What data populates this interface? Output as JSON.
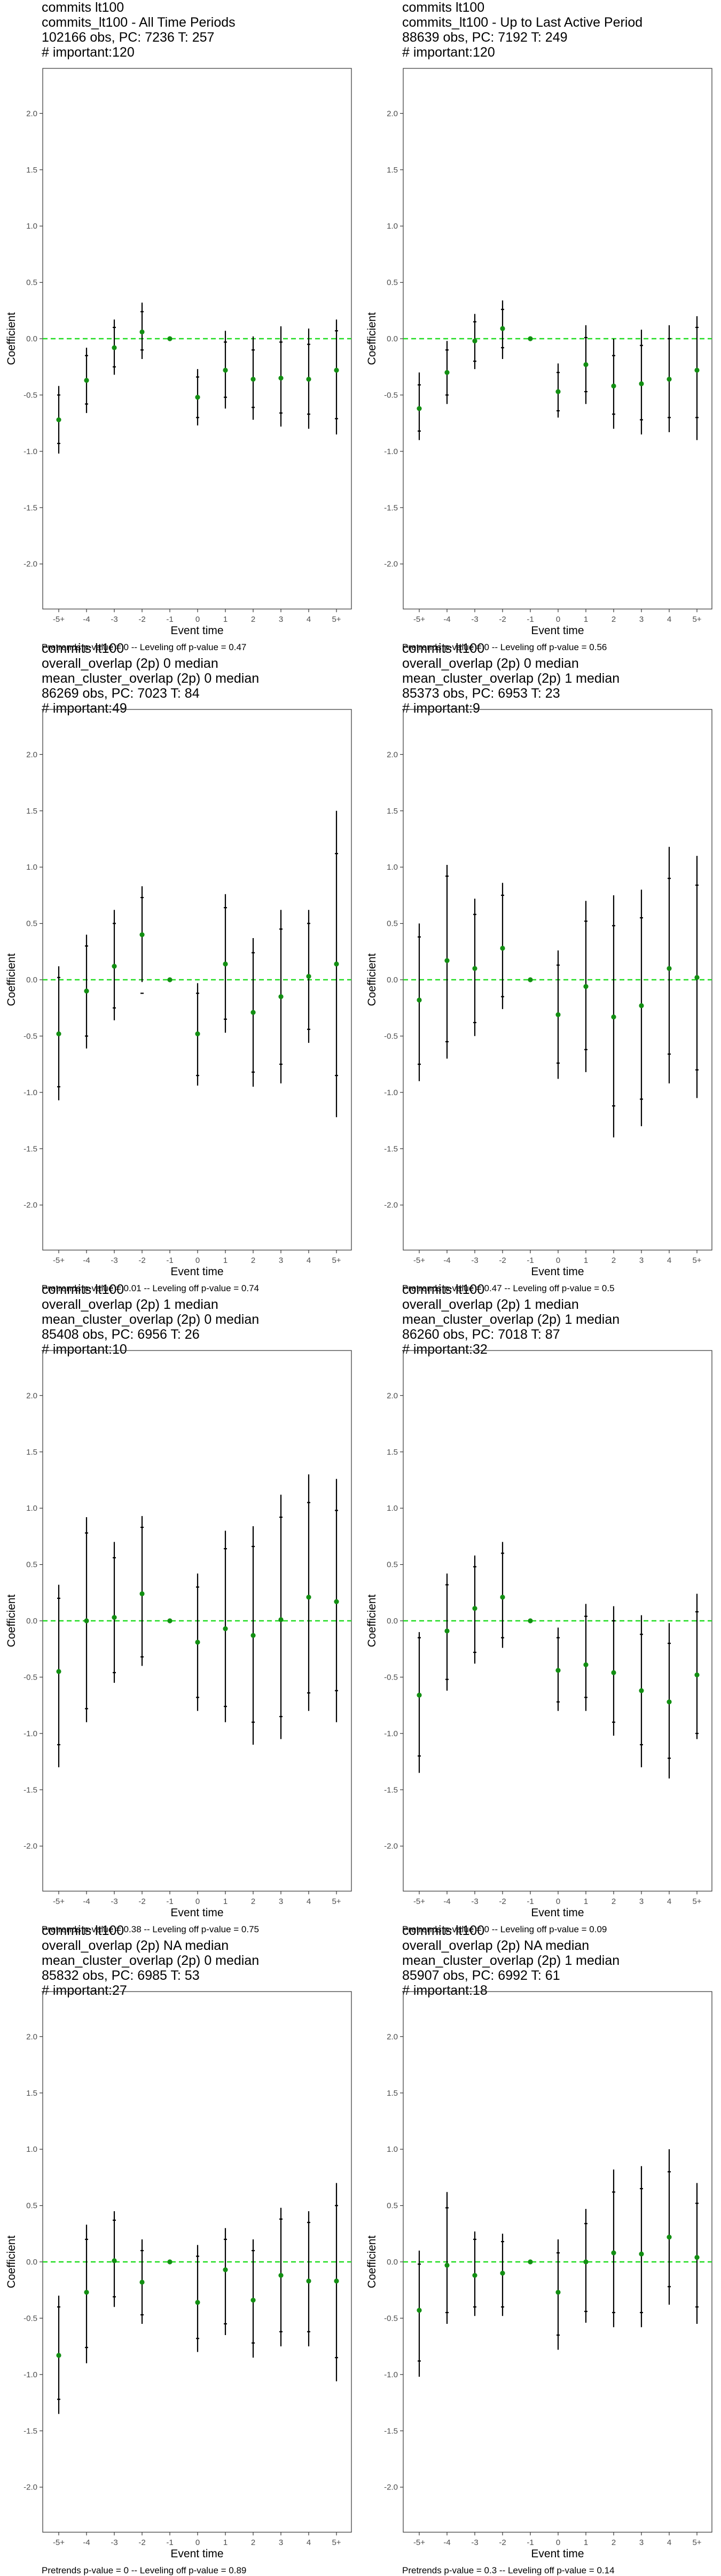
{
  "chart_data": [
    {
      "type": "scatter",
      "title": [
        "commits lt100",
        "commits_lt100 - All Time Periods",
        "102166 obs, PC: 7236 T: 257",
        "# important:120"
      ],
      "xlabel": "Event time",
      "ylabel": "Coefficient",
      "categories": [
        "-5+",
        "-4",
        "-3",
        "-2",
        "-1",
        "0",
        "1",
        "2",
        "3",
        "4",
        "5+"
      ],
      "ylim": [
        -2.4,
        2.4
      ],
      "yticks": [
        -2.0,
        -1.5,
        -1.0,
        -0.5,
        0.0,
        0.5,
        1.0,
        1.5,
        2.0
      ],
      "reference_line": 0,
      "footer": "Pretrends p-value = 0 -- Leveling off p-value = 0.47",
      "estimate": [
        -0.72,
        -0.37,
        -0.08,
        0.06,
        0.0,
        -0.52,
        -0.28,
        -0.36,
        -0.35,
        -0.36,
        -0.28
      ],
      "ci95": [
        [
          -1.02,
          -0.42
        ],
        [
          -0.66,
          -0.08
        ],
        [
          -0.32,
          0.17
        ],
        [
          -0.18,
          0.32
        ],
        [
          0.0,
          0.0
        ],
        [
          -0.77,
          -0.27
        ],
        [
          -0.62,
          0.07
        ],
        [
          -0.72,
          0.02
        ],
        [
          -0.78,
          0.11
        ],
        [
          -0.8,
          0.09
        ],
        [
          -0.85,
          0.17
        ]
      ],
      "ci90": [
        [
          -0.93,
          -0.5
        ],
        [
          -0.58,
          -0.15
        ],
        [
          -0.25,
          0.1
        ],
        [
          -0.1,
          0.24
        ],
        [
          0.0,
          0.0
        ],
        [
          -0.7,
          -0.34
        ],
        [
          -0.52,
          -0.03
        ],
        [
          -0.61,
          -0.1
        ],
        [
          -0.66,
          -0.03
        ],
        [
          -0.67,
          -0.05
        ],
        [
          -0.71,
          0.07
        ]
      ]
    },
    {
      "type": "scatter",
      "title": [
        "commits lt100",
        "commits_lt100 - Up to Last Active Period",
        "88639 obs, PC: 7192 T: 249",
        "# important:120"
      ],
      "xlabel": "Event time",
      "ylabel": "Coefficient",
      "categories": [
        "-5+",
        "-4",
        "-3",
        "-2",
        "-1",
        "0",
        "1",
        "2",
        "3",
        "4",
        "5+"
      ],
      "ylim": [
        -2.4,
        2.4
      ],
      "yticks": [
        -2.0,
        -1.5,
        -1.0,
        -0.5,
        0.0,
        0.5,
        1.0,
        1.5,
        2.0
      ],
      "reference_line": 0,
      "footer": "Pretrends p-value = 0 -- Leveling off p-value = 0.56",
      "estimate": [
        -0.62,
        -0.3,
        -0.02,
        0.09,
        0.0,
        -0.47,
        -0.23,
        -0.42,
        -0.4,
        -0.36,
        -0.28
      ],
      "ci95": [
        [
          -0.9,
          -0.3
        ],
        [
          -0.58,
          -0.02
        ],
        [
          -0.27,
          0.22
        ],
        [
          -0.18,
          0.34
        ],
        [
          0.0,
          0.0
        ],
        [
          -0.7,
          -0.22
        ],
        [
          -0.58,
          0.12
        ],
        [
          -0.8,
          0.0
        ],
        [
          -0.85,
          0.08
        ],
        [
          -0.83,
          0.12
        ],
        [
          -0.9,
          0.2
        ]
      ],
      "ci90": [
        [
          -0.82,
          -0.41
        ],
        [
          -0.5,
          -0.1
        ],
        [
          -0.2,
          0.15
        ],
        [
          -0.08,
          0.26
        ],
        [
          0.0,
          0.0
        ],
        [
          -0.64,
          -0.3
        ],
        [
          -0.47,
          0.01
        ],
        [
          -0.67,
          -0.15
        ],
        [
          -0.72,
          -0.06
        ],
        [
          -0.7,
          0.0
        ],
        [
          -0.7,
          0.1
        ]
      ]
    },
    {
      "type": "scatter",
      "title": [
        "commits lt100",
        "overall_overlap (2p) 0 median",
        "mean_cluster_overlap (2p) 0 median",
        "86269 obs, PC: 7023 T: 84",
        "# important:49"
      ],
      "xlabel": "Event time",
      "ylabel": "Coefficient",
      "categories": [
        "-5+",
        "-4",
        "-3",
        "-2",
        "-1",
        "0",
        "1",
        "2",
        "3",
        "4",
        "5+"
      ],
      "ylim": [
        -2.4,
        2.4
      ],
      "yticks": [
        -2.0,
        -1.5,
        -1.0,
        -0.5,
        0.0,
        0.5,
        1.0,
        1.5,
        2.0
      ],
      "reference_line": 0,
      "footer": "Pretrends p-value = 0.01 -- Leveling off p-value = 0.74",
      "estimate": [
        -0.48,
        -0.1,
        0.12,
        0.4,
        0.0,
        -0.48,
        0.14,
        -0.29,
        -0.15,
        0.03,
        0.14
      ],
      "ci95": [
        [
          -1.07,
          0.12
        ],
        [
          -0.61,
          0.4
        ],
        [
          -0.36,
          0.62
        ],
        [
          -0.02,
          0.83
        ],
        [
          0.0,
          0.0
        ],
        [
          -0.94,
          -0.03
        ],
        [
          -0.47,
          0.76
        ],
        [
          -0.95,
          0.37
        ],
        [
          -0.92,
          0.62
        ],
        [
          -0.56,
          0.62
        ],
        [
          -1.22,
          1.5
        ]
      ],
      "ci90": [
        [
          -0.95,
          0.02
        ],
        [
          -0.5,
          0.3
        ],
        [
          -0.25,
          0.5
        ],
        [
          -0.12,
          0.73
        ],
        [
          0.0,
          0.0
        ],
        [
          -0.85,
          -0.12
        ],
        [
          -0.35,
          0.64
        ],
        [
          -0.82,
          0.24
        ],
        [
          -0.75,
          0.45
        ],
        [
          -0.44,
          0.5
        ],
        [
          -0.85,
          1.12
        ]
      ]
    },
    {
      "type": "scatter",
      "title": [
        "commits lt100",
        "overall_overlap (2p) 0 median",
        "mean_cluster_overlap (2p) 1 median",
        "85373 obs, PC: 6953 T: 23",
        "# important:9"
      ],
      "xlabel": "Event time",
      "ylabel": "Coefficient",
      "categories": [
        "-5+",
        "-4",
        "-3",
        "-2",
        "-1",
        "0",
        "1",
        "2",
        "3",
        "4",
        "5+"
      ],
      "ylim": [
        -2.4,
        2.4
      ],
      "yticks": [
        -2.0,
        -1.5,
        -1.0,
        -0.5,
        0.0,
        0.5,
        1.0,
        1.5,
        2.0
      ],
      "reference_line": 0,
      "footer": "Pretrends p-value = 0.47 -- Leveling off p-value = 0.5",
      "estimate": [
        -0.18,
        0.17,
        0.1,
        0.28,
        0.0,
        -0.31,
        -0.06,
        -0.33,
        -0.23,
        0.1,
        0.02
      ],
      "ci95": [
        [
          -0.9,
          0.5
        ],
        [
          -0.7,
          1.02
        ],
        [
          -0.5,
          0.72
        ],
        [
          -0.26,
          0.86
        ],
        [
          0.0,
          0.0
        ],
        [
          -0.88,
          0.26
        ],
        [
          -0.82,
          0.7
        ],
        [
          -1.4,
          0.75
        ],
        [
          -1.3,
          0.8
        ],
        [
          -0.92,
          1.18
        ],
        [
          -1.05,
          1.1
        ]
      ],
      "ci90": [
        [
          -0.75,
          0.38
        ],
        [
          -0.55,
          0.92
        ],
        [
          -0.38,
          0.58
        ],
        [
          -0.15,
          0.75
        ],
        [
          0.0,
          0.0
        ],
        [
          -0.74,
          0.13
        ],
        [
          -0.62,
          0.52
        ],
        [
          -1.12,
          0.48
        ],
        [
          -1.06,
          0.55
        ],
        [
          -0.66,
          0.9
        ],
        [
          -0.8,
          0.84
        ]
      ]
    },
    {
      "type": "scatter",
      "title": [
        "commits lt100",
        "overall_overlap (2p) 1 median",
        "mean_cluster_overlap (2p) 0 median",
        "85408 obs, PC: 6956 T: 26",
        "# important:10"
      ],
      "xlabel": "Event time",
      "ylabel": "Coefficient",
      "categories": [
        "-5+",
        "-4",
        "-3",
        "-2",
        "-1",
        "0",
        "1",
        "2",
        "3",
        "4",
        "5+"
      ],
      "ylim": [
        -2.4,
        2.4
      ],
      "yticks": [
        -2.0,
        -1.5,
        -1.0,
        -0.5,
        0.0,
        0.5,
        1.0,
        1.5,
        2.0
      ],
      "reference_line": 0,
      "footer": "Pretrends p-value = 0.38 -- Leveling off p-value = 0.75",
      "estimate": [
        -0.45,
        0.0,
        0.03,
        0.24,
        0.0,
        -0.19,
        -0.07,
        -0.13,
        0.01,
        0.21,
        0.17
      ],
      "ci95": [
        [
          -1.3,
          0.32
        ],
        [
          -0.9,
          0.92
        ],
        [
          -0.55,
          0.7
        ],
        [
          -0.4,
          0.93
        ],
        [
          0.0,
          0.0
        ],
        [
          -0.8,
          0.42
        ],
        [
          -0.9,
          0.8
        ],
        [
          -1.1,
          0.84
        ],
        [
          -1.05,
          1.12
        ],
        [
          -0.8,
          1.3
        ],
        [
          -0.9,
          1.26
        ]
      ],
      "ci90": [
        [
          -1.1,
          0.2
        ],
        [
          -0.78,
          0.78
        ],
        [
          -0.46,
          0.56
        ],
        [
          -0.32,
          0.83
        ],
        [
          0.0,
          0.0
        ],
        [
          -0.68,
          0.3
        ],
        [
          -0.76,
          0.64
        ],
        [
          -0.9,
          0.66
        ],
        [
          -0.85,
          0.92
        ],
        [
          -0.64,
          1.05
        ],
        [
          -0.62,
          0.98
        ]
      ]
    },
    {
      "type": "scatter",
      "title": [
        "commits lt100",
        "overall_overlap (2p) 1 median",
        "mean_cluster_overlap (2p) 1 median",
        "86260 obs, PC: 7018 T: 87",
        "# important:32"
      ],
      "xlabel": "Event time",
      "ylabel": "Coefficient",
      "categories": [
        "-5+",
        "-4",
        "-3",
        "-2",
        "-1",
        "0",
        "1",
        "2",
        "3",
        "4",
        "5+"
      ],
      "ylim": [
        -2.4,
        2.4
      ],
      "yticks": [
        -2.0,
        -1.5,
        -1.0,
        -0.5,
        0.0,
        0.5,
        1.0,
        1.5,
        2.0
      ],
      "reference_line": 0,
      "footer": "Pretrends p-value = 0 -- Leveling off p-value = 0.09",
      "estimate": [
        -0.66,
        -0.09,
        0.11,
        0.21,
        0.0,
        -0.44,
        -0.39,
        -0.46,
        -0.62,
        -0.72,
        -0.48
      ],
      "ci95": [
        [
          -1.35,
          -0.1
        ],
        [
          -0.62,
          0.42
        ],
        [
          -0.38,
          0.58
        ],
        [
          -0.24,
          0.7
        ],
        [
          0.0,
          0.0
        ],
        [
          -0.8,
          -0.06
        ],
        [
          -0.8,
          0.15
        ],
        [
          -1.02,
          0.13
        ],
        [
          -1.3,
          0.05
        ],
        [
          -1.4,
          -0.02
        ],
        [
          -1.05,
          0.24
        ]
      ],
      "ci90": [
        [
          -1.2,
          -0.15
        ],
        [
          -0.52,
          0.32
        ],
        [
          -0.28,
          0.48
        ],
        [
          -0.15,
          0.6
        ],
        [
          0.0,
          0.0
        ],
        [
          -0.72,
          -0.15
        ],
        [
          -0.68,
          0.04
        ],
        [
          -0.9,
          0.0
        ],
        [
          -1.1,
          -0.12
        ],
        [
          -1.22,
          -0.2
        ],
        [
          -1.0,
          0.08
        ]
      ]
    },
    {
      "type": "scatter",
      "title": [
        "commits lt100",
        "overall_overlap (2p) NA median",
        "mean_cluster_overlap (2p) 0 median",
        "85832 obs, PC: 6985 T: 53",
        "# important:27"
      ],
      "xlabel": "Event time",
      "ylabel": "Coefficient",
      "categories": [
        "-5+",
        "-4",
        "-3",
        "-2",
        "-1",
        "0",
        "1",
        "2",
        "3",
        "4",
        "5+"
      ],
      "ylim": [
        -2.4,
        2.4
      ],
      "yticks": [
        -2.0,
        -1.5,
        -1.0,
        -0.5,
        0.0,
        0.5,
        1.0,
        1.5,
        2.0
      ],
      "reference_line": 0,
      "footer": "Pretrends p-value = 0 -- Leveling off p-value = 0.89",
      "estimate": [
        -0.83,
        -0.27,
        0.01,
        -0.18,
        0.0,
        -0.36,
        -0.07,
        -0.34,
        -0.12,
        -0.17,
        -0.17
      ],
      "ci95": [
        [
          -1.35,
          -0.3
        ],
        [
          -0.9,
          0.33
        ],
        [
          -0.4,
          0.45
        ],
        [
          -0.55,
          0.2
        ],
        [
          0.0,
          0.0
        ],
        [
          -0.8,
          0.15
        ],
        [
          -0.65,
          0.3
        ],
        [
          -0.85,
          0.2
        ],
        [
          -0.75,
          0.48
        ],
        [
          -0.75,
          0.45
        ],
        [
          -1.06,
          0.7
        ]
      ],
      "ci90": [
        [
          -1.22,
          -0.4
        ],
        [
          -0.76,
          0.2
        ],
        [
          -0.31,
          0.37
        ],
        [
          -0.47,
          0.1
        ],
        [
          0.0,
          0.0
        ],
        [
          -0.68,
          0.05
        ],
        [
          -0.55,
          0.2
        ],
        [
          -0.72,
          0.1
        ],
        [
          -0.62,
          0.38
        ],
        [
          -0.62,
          0.35
        ],
        [
          -0.85,
          0.5
        ]
      ]
    },
    {
      "type": "scatter",
      "title": [
        "commits lt100",
        "overall_overlap (2p) NA median",
        "mean_cluster_overlap (2p) 1 median",
        "85907 obs, PC: 6992 T: 61",
        "# important:18"
      ],
      "xlabel": "Event time",
      "ylabel": "Coefficient",
      "categories": [
        "-5+",
        "-4",
        "-3",
        "-2",
        "-1",
        "0",
        "1",
        "2",
        "3",
        "4",
        "5+"
      ],
      "ylim": [
        -2.4,
        2.4
      ],
      "yticks": [
        -2.0,
        -1.5,
        -1.0,
        -0.5,
        0.0,
        0.5,
        1.0,
        1.5,
        2.0
      ],
      "reference_line": 0,
      "footer": "Pretrends p-value = 0.3 -- Leveling off p-value = 0.14",
      "estimate": [
        -0.43,
        -0.03,
        -0.12,
        -0.1,
        0.0,
        -0.27,
        0.0,
        0.08,
        0.07,
        0.22,
        0.04
      ],
      "ci95": [
        [
          -1.02,
          0.1
        ],
        [
          -0.55,
          0.62
        ],
        [
          -0.48,
          0.27
        ],
        [
          -0.48,
          0.25
        ],
        [
          0.0,
          0.0
        ],
        [
          -0.78,
          0.2
        ],
        [
          -0.54,
          0.47
        ],
        [
          -0.58,
          0.82
        ],
        [
          -0.58,
          0.85
        ],
        [
          -0.38,
          1.0
        ],
        [
          -0.55,
          0.7
        ]
      ],
      "ci90": [
        [
          -0.88,
          -0.02
        ],
        [
          -0.45,
          0.48
        ],
        [
          -0.4,
          0.2
        ],
        [
          -0.4,
          0.18
        ],
        [
          0.0,
          0.0
        ],
        [
          -0.65,
          0.08
        ],
        [
          -0.44,
          0.34
        ],
        [
          -0.45,
          0.62
        ],
        [
          -0.45,
          0.65
        ],
        [
          -0.22,
          0.8
        ],
        [
          -0.4,
          0.52
        ]
      ]
    }
  ]
}
